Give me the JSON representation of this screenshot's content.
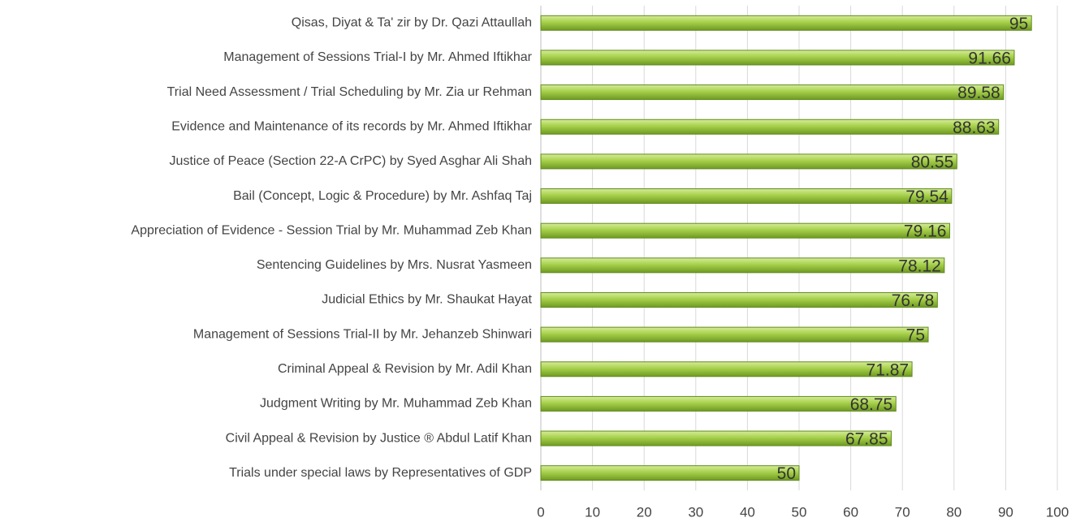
{
  "chart_data": {
    "type": "barh",
    "categories": [
      "Qisas, Diyat & Ta' zir by Dr. Qazi Attaullah",
      "Management of Sessions Trial-I by Mr. Ahmed Iftikhar",
      "Trial Need Assessment / Trial Scheduling by Mr. Zia ur Rehman",
      "Evidence and Maintenance of its records by Mr. Ahmed Iftikhar",
      "Justice of Peace (Section 22-A CrPC) by Syed Asghar Ali Shah",
      "Bail (Concept, Logic & Procedure) by Mr. Ashfaq Taj",
      "Appreciation of Evidence - Session Trial by Mr. Muhammad Zeb Khan",
      "Sentencing Guidelines by Mrs.  Nusrat Yasmeen",
      "Judicial Ethics  by Mr. Shaukat Hayat",
      "Management of Sessions Trial-II by Mr. Jehanzeb Shinwari",
      "Criminal Appeal & Revision by Mr. Adil Khan",
      "Judgment Writing by Mr. Muhammad Zeb Khan",
      "Civil Appeal & Revision  by Justice ® Abdul Latif Khan",
      "Trials under special laws by Representatives of GDP"
    ],
    "values": [
      95,
      91.66,
      89.58,
      88.63,
      80.55,
      79.54,
      79.16,
      78.12,
      76.78,
      75,
      71.87,
      68.75,
      67.85,
      50
    ],
    "color": "#92c13a",
    "xlim": [
      0,
      100
    ],
    "xticks": [
      0,
      10,
      20,
      30,
      40,
      50,
      60,
      70,
      80,
      90,
      100
    ],
    "grid": true
  }
}
